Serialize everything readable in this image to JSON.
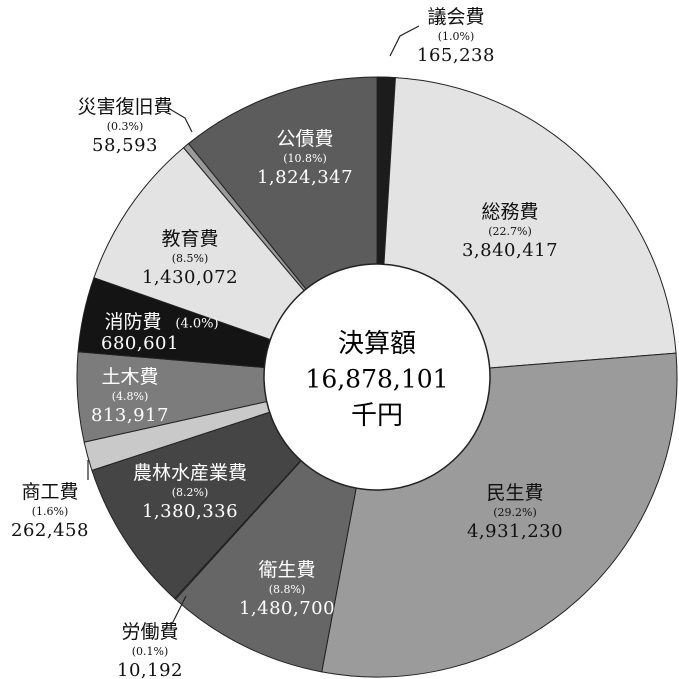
{
  "chart_data": {
    "type": "donut",
    "categories": [
      "議会費",
      "総務費",
      "民生費",
      "衛生費",
      "労働費",
      "農林水産業費",
      "商工費",
      "土木費",
      "消防費",
      "教育費",
      "災害復旧費",
      "公債費"
    ],
    "values": [
      165238,
      3840417,
      4931230,
      1480700,
      10192,
      1380336,
      262458,
      813917,
      680601,
      1430072,
      58593,
      1824347
    ],
    "value_labels": [
      "165,238",
      "3,840,417",
      "4,931,230",
      "1,480,700",
      "10,192",
      "1,380,336",
      "262,458",
      "813,917",
      "680,601",
      "1,430,072",
      "58,593",
      "1,824,347"
    ],
    "percents": [
      1.0,
      22.7,
      29.2,
      8.8,
      0.1,
      8.2,
      1.6,
      4.8,
      4.0,
      8.5,
      0.3,
      10.8
    ],
    "percent_labels": [
      "(1.0%)",
      "(22.7%)",
      "(29.2%)",
      "(8.8%)",
      "(0.1%)",
      "(8.2%)",
      "(1.6%)",
      "(4.8%)",
      "(4.0%)",
      "(8.5%)",
      "(0.3%)",
      "(10.8%)"
    ],
    "colors": [
      "#1c1c1c",
      "#e3e3e3",
      "#9b9b9b",
      "#666666",
      "#d0d0d0",
      "#454545",
      "#c9c9c9",
      "#7c7c7c",
      "#141414",
      "#e3e3e3",
      "#9a9a9a",
      "#5c5c5c"
    ],
    "center_title": "決算額",
    "total": 16878101,
    "total_label": "16,878,101",
    "center_unit": "千円"
  }
}
